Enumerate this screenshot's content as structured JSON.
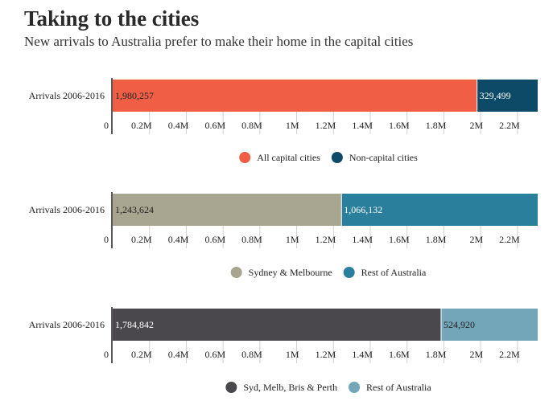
{
  "title": "Taking to the cities",
  "subtitle": "New arrivals to Australia prefer to make their home in the capital cities",
  "chart_data": [
    {
      "type": "bar",
      "stacked": true,
      "orientation": "horizontal",
      "categories": [
        "Arrivals 2006-2016"
      ],
      "series": [
        {
          "name": "All capital cities",
          "values": [
            1980257
          ],
          "label": "1,980,257",
          "color": "#f05f45",
          "label_color": "#222222"
        },
        {
          "name": "Non-capital cities",
          "values": [
            329499
          ],
          "label": "329,499",
          "color": "#0d4a67",
          "label_color": "#ffffff"
        }
      ],
      "xlim": [
        0,
        2310000
      ],
      "ticks": [
        0,
        200000,
        400000,
        600000,
        800000,
        1000000,
        1200000,
        1400000,
        1600000,
        1800000,
        2000000,
        2200000
      ],
      "tick_labels": [
        "0",
        "0.2M",
        "0.4M",
        "0.6M",
        "0.8M",
        "1M",
        "1.2M",
        "1.4M",
        "1.6M",
        "1.8M",
        "2M",
        "2.2M"
      ],
      "legend": "bottom-center"
    },
    {
      "type": "bar",
      "stacked": true,
      "orientation": "horizontal",
      "categories": [
        "Arrivals 2006-2016"
      ],
      "series": [
        {
          "name": "Sydney & Melbourne",
          "values": [
            1243624
          ],
          "label": "1,243,624",
          "color": "#a8a590",
          "label_color": "#222222"
        },
        {
          "name": "Rest of Australia",
          "values": [
            1066132
          ],
          "label": "1,066,132",
          "color": "#2a7f9c",
          "label_color": "#ffffff"
        }
      ],
      "xlim": [
        0,
        2310000
      ],
      "ticks": [
        0,
        200000,
        400000,
        600000,
        800000,
        1000000,
        1200000,
        1400000,
        1600000,
        1800000,
        2000000,
        2200000
      ],
      "tick_labels": [
        "0",
        "0.2M",
        "0.4M",
        "0.6M",
        "0.8M",
        "1M",
        "1.2M",
        "1.4M",
        "1.6M",
        "1.8M",
        "2M",
        "2.2M"
      ],
      "legend": "bottom-center"
    },
    {
      "type": "bar",
      "stacked": true,
      "orientation": "horizontal",
      "categories": [
        "Arrivals 2006-2016"
      ],
      "series": [
        {
          "name": "Syd, Melb, Bris & Perth",
          "values": [
            1784842
          ],
          "label": "1,784,842",
          "color": "#4b484d",
          "label_color": "#ffffff"
        },
        {
          "name": "Rest of Australia",
          "values": [
            524920
          ],
          "label": "524,920",
          "color": "#73a6b8",
          "label_color": "#222222"
        }
      ],
      "xlim": [
        0,
        2310000
      ],
      "ticks": [
        0,
        200000,
        400000,
        600000,
        800000,
        1000000,
        1200000,
        1400000,
        1600000,
        1800000,
        2000000,
        2200000
      ],
      "tick_labels": [
        "0",
        "0.2M",
        "0.4M",
        "0.6M",
        "0.8M",
        "1M",
        "1.2M",
        "1.4M",
        "1.6M",
        "1.8M",
        "2M",
        "2.2M"
      ],
      "legend": "bottom-center"
    }
  ]
}
